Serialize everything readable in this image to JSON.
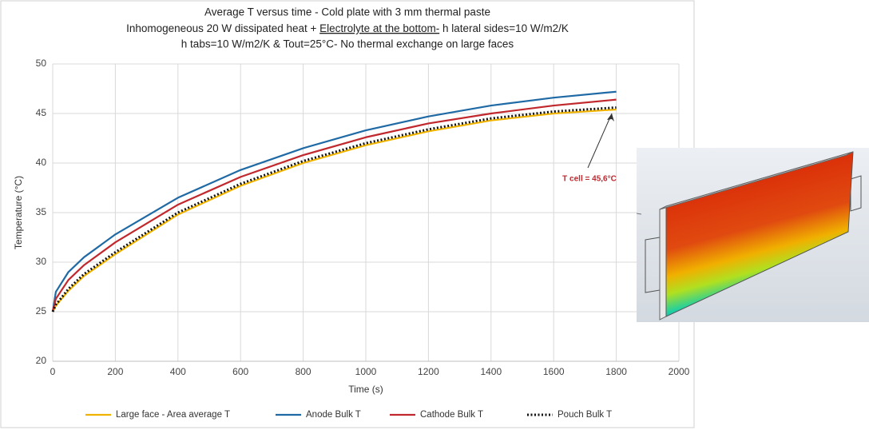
{
  "chart_data": {
    "type": "line",
    "title": "Average T versus time - Cold plate with 3 mm thermal paste",
    "subtitle_line_1": [
      "Inhomogeneous  20 W dissipated heat  + ",
      "Electrolyte at the bottom-",
      " h lateral sides=10 W/m2/K"
    ],
    "subtitle_line_2": "h  tabs=10 W/m2/K & Tout=25°C- No thermal exchange on large faces",
    "x_label": "Time (s)",
    "y_label": "Temperature (°C)",
    "annotation": "T cell = 45,6°C",
    "x": [
      0,
      10,
      50,
      100,
      200,
      400,
      600,
      800,
      1000,
      1200,
      1400,
      1600,
      1800
    ],
    "series": [
      {
        "name": "Large face - Area average T",
        "color": "#f0b400",
        "style": "solid",
        "values": [
          25,
          25.6,
          27.1,
          28.6,
          30.8,
          34.8,
          37.7,
          40.0,
          41.8,
          43.2,
          44.3,
          45.0,
          45.4
        ]
      },
      {
        "name": "Anode Bulk T",
        "color": "#1f6aa5",
        "style": "solid",
        "values": [
          25,
          27.0,
          29.0,
          30.5,
          32.8,
          36.5,
          39.3,
          41.5,
          43.3,
          44.7,
          45.8,
          46.6,
          47.2
        ]
      },
      {
        "name": "Cathode Bulk T",
        "color": "#c0282d",
        "style": "solid",
        "values": [
          25,
          26.3,
          28.2,
          29.7,
          32.0,
          35.8,
          38.6,
          40.8,
          42.6,
          44.0,
          45.0,
          45.8,
          46.4
        ]
      },
      {
        "name": "Pouch Bulk T",
        "color": "#111111",
        "style": "dotted",
        "values": [
          25,
          25.7,
          27.3,
          28.8,
          31.0,
          35.0,
          37.9,
          40.2,
          42.0,
          43.4,
          44.5,
          45.2,
          45.6
        ]
      }
    ],
    "xlim": [
      0,
      2000
    ],
    "xticks": [
      0,
      200,
      400,
      600,
      800,
      1000,
      1200,
      1400,
      1600,
      1800,
      2000
    ],
    "ylim": [
      20,
      50
    ],
    "yticks": [
      20,
      25,
      30,
      35,
      40,
      45,
      50
    ],
    "grid": true,
    "legend": "bottom"
  }
}
